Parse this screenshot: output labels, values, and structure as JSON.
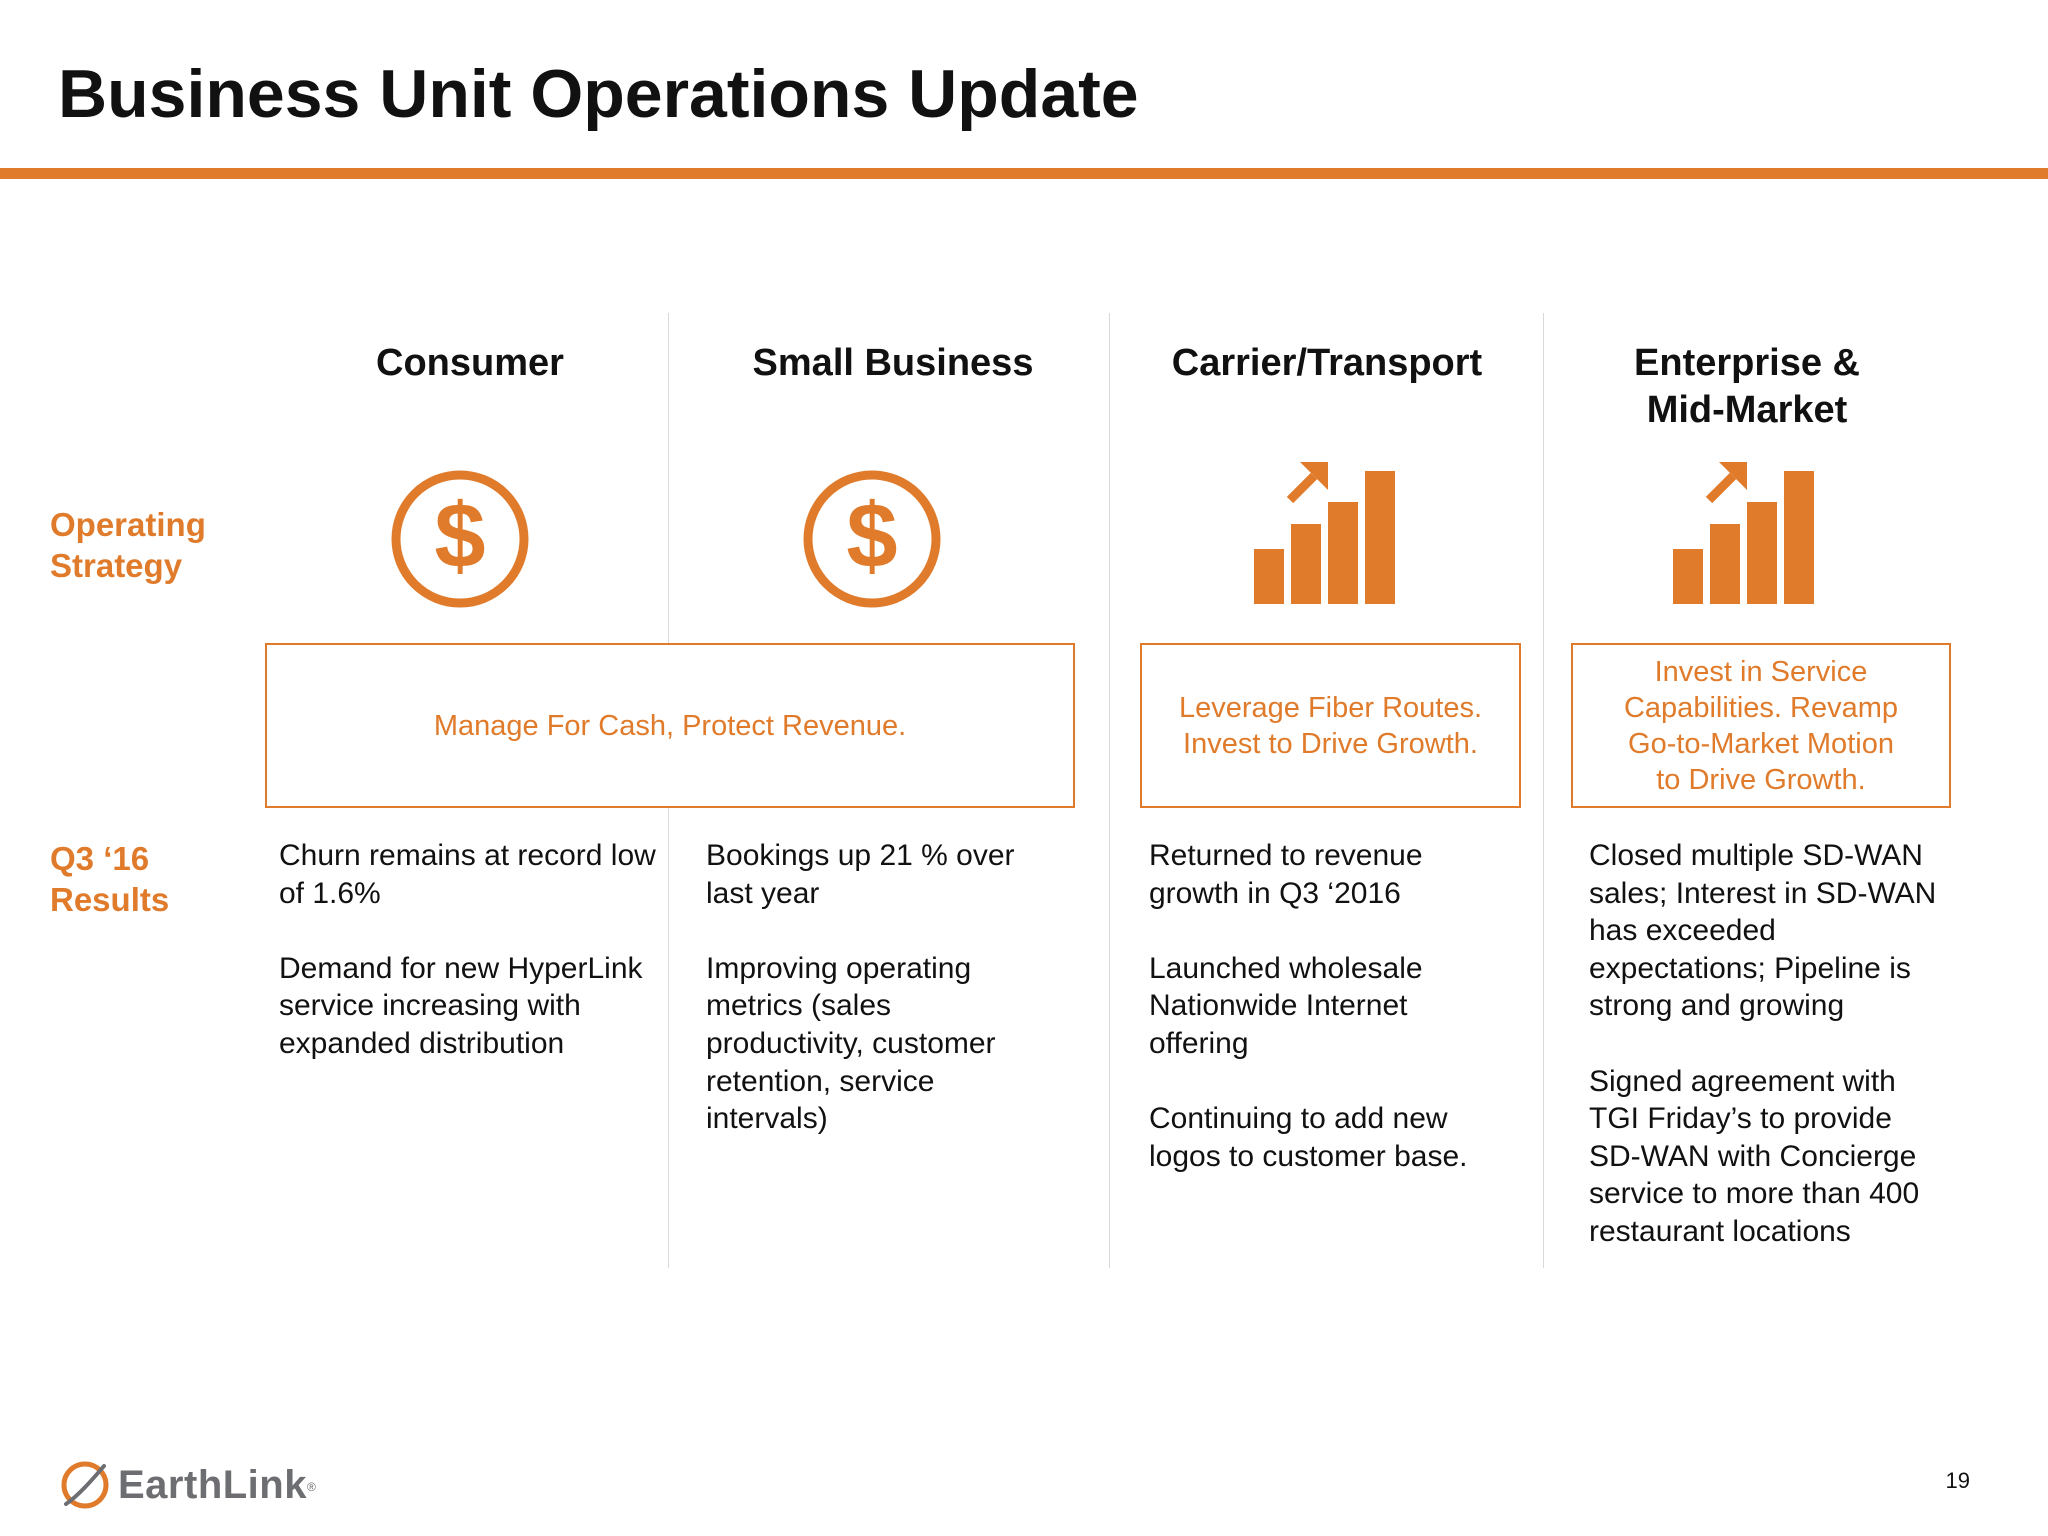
{
  "slide": {
    "title": "Business Unit Operations Update",
    "page_number": "19"
  },
  "row_labels": {
    "strategy": [
      "Operating",
      "Strategy"
    ],
    "results": [
      "Q3 ‘16",
      "Results"
    ]
  },
  "columns": [
    {
      "heading": [
        "Consumer"
      ],
      "icon": "dollar-circle-icon",
      "results": [
        "Churn remains at  record low of 1.6%",
        "Demand for new HyperLink service increasing with expanded distribution"
      ]
    },
    {
      "heading": [
        "Small Business"
      ],
      "icon": "dollar-circle-icon",
      "results": [
        "Bookings up 21 % over last year",
        "Improving operating metrics (sales productivity, customer retention, service intervals)"
      ]
    },
    {
      "heading": [
        "Carrier/Transport"
      ],
      "icon": "growth-chart-icon",
      "results": [
        "Returned to revenue growth in Q3 ‘2016",
        "Launched wholesale Nationwide Internet offering",
        "Continuing to add new logos to customer base."
      ]
    },
    {
      "heading": [
        "Enterprise &",
        "Mid-Market"
      ],
      "icon": "growth-chart-icon",
      "results": [
        "Closed multiple SD-WAN sales; Interest in SD-WAN has exceeded expectations; Pipeline is strong and growing",
        "Signed agreement with TGI Friday’s to provide SD-WAN with Concierge service to more than 400 restaurant locations"
      ]
    }
  ],
  "strategies": [
    {
      "lines": [
        "Manage For Cash, Protect Revenue."
      ]
    },
    {
      "lines": [
        "Leverage Fiber Routes.",
        "Invest to Drive Growth."
      ]
    },
    {
      "lines": [
        "Invest in Service",
        "Capabilities. Revamp",
        "Go-to-Market Motion",
        "to Drive Growth."
      ]
    }
  ],
  "logo": {
    "text": "EarthLink",
    "mark": "®",
    "icon": "earthlink-globe-icon"
  },
  "colors": {
    "accent": "#e07b2b",
    "text": "#111111",
    "logo_gray": "#6d6e71",
    "divider": "#d9d9d9"
  }
}
